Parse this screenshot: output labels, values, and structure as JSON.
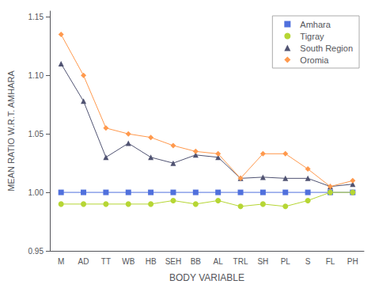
{
  "chart_data": {
    "type": "line",
    "categories": [
      "M",
      "AD",
      "TT",
      "WB",
      "HB",
      "SEH",
      "BB",
      "AL",
      "TRL",
      "SH",
      "PL",
      "S",
      "FL",
      "PH"
    ],
    "series": [
      {
        "name": "Amhara",
        "marker": "square",
        "values": [
          1.0,
          1.0,
          1.0,
          1.0,
          1.0,
          1.0,
          1.0,
          1.0,
          1.0,
          1.0,
          1.0,
          1.0,
          1.0,
          1.0
        ]
      },
      {
        "name": "Tigray",
        "marker": "circle",
        "values": [
          0.99,
          0.99,
          0.99,
          0.99,
          0.99,
          0.993,
          0.99,
          0.993,
          0.988,
          0.99,
          0.988,
          0.993,
          1.0,
          1.0
        ]
      },
      {
        "name": "South Region",
        "marker": "triangle",
        "values": [
          1.11,
          1.078,
          1.03,
          1.042,
          1.03,
          1.025,
          1.032,
          1.03,
          1.012,
          1.013,
          1.012,
          1.012,
          1.005,
          1.007
        ]
      },
      {
        "name": "Oromia",
        "marker": "diamond",
        "values": [
          1.135,
          1.1,
          1.055,
          1.05,
          1.047,
          1.04,
          1.035,
          1.033,
          1.012,
          1.033,
          1.033,
          1.02,
          1.005,
          1.01
        ]
      }
    ],
    "xlabel": "BODY VARIABLE",
    "ylabel": "MEAN RATIO W.R.T. AMHARA",
    "ylim": [
      0.95,
      1.155
    ],
    "yticks": [
      0.95,
      {
        "value": 1.0,
        "label": "1.00"
      },
      1.05,
      {
        "value": 1.1,
        "label": "1.10"
      },
      1.15
    ],
    "legend": "upper right",
    "grid": false
  }
}
